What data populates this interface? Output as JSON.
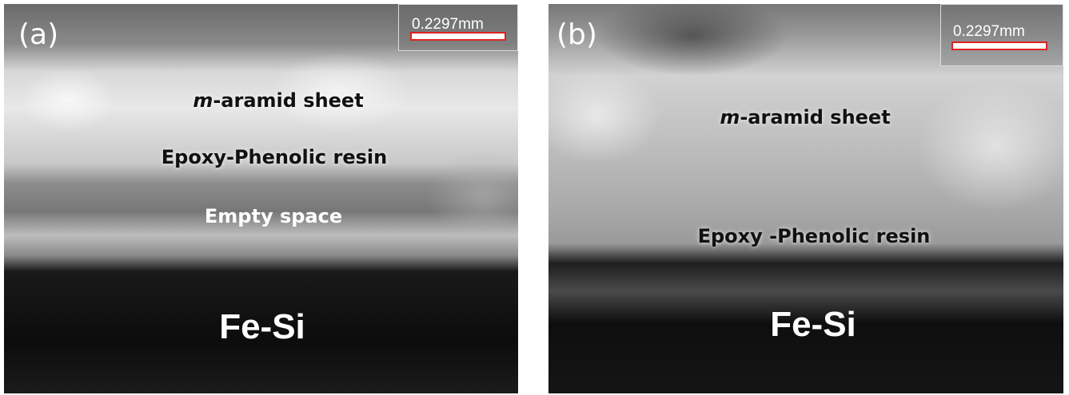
{
  "panels": [
    {
      "label": "(a)",
      "scale_bar": "0.2297mm",
      "annotations": [
        {
          "italic": "m",
          "text": "-aramid sheet"
        },
        {
          "text": "Epoxy-Phenolic resin"
        },
        {
          "text": "Empty space"
        },
        {
          "text": "Fe-Si"
        }
      ]
    },
    {
      "label": "(b)",
      "scale_bar": "0.2297mm",
      "annotations": [
        {
          "italic": "m",
          "text": "-aramid sheet"
        },
        {
          "text": "Epoxy -Phenolic resin"
        },
        {
          "text": "Fe-Si"
        }
      ]
    }
  ]
}
